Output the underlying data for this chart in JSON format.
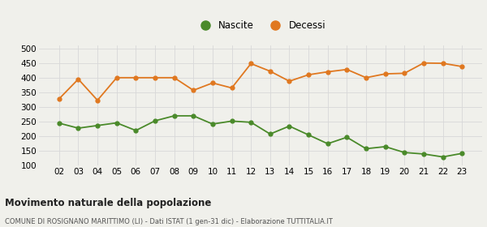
{
  "years": [
    "02",
    "03",
    "04",
    "05",
    "06",
    "07",
    "08",
    "09",
    "10",
    "11",
    "12",
    "13",
    "14",
    "15",
    "16",
    "17",
    "18",
    "19",
    "20",
    "21",
    "22",
    "23"
  ],
  "nascite": [
    245,
    228,
    237,
    246,
    220,
    253,
    270,
    270,
    242,
    252,
    248,
    208,
    235,
    205,
    175,
    197,
    158,
    165,
    145,
    140,
    130,
    142
  ],
  "decessi": [
    328,
    395,
    323,
    400,
    400,
    400,
    400,
    357,
    382,
    365,
    448,
    422,
    388,
    410,
    420,
    428,
    400,
    413,
    415,
    450,
    449,
    438
  ],
  "nascite_color": "#4a8a2a",
  "decessi_color": "#e07820",
  "title": "Movimento naturale della popolazione",
  "subtitle": "COMUNE DI ROSIGNANO MARITTIMO (LI) - Dati ISTAT (1 gen-31 dic) - Elaborazione TUTTITALIA.IT",
  "legend_nascite": "Nascite",
  "legend_decessi": "Decessi",
  "ylim": [
    100,
    510
  ],
  "yticks": [
    100,
    150,
    200,
    250,
    300,
    350,
    400,
    450,
    500
  ],
  "bg_color": "#f0f0eb",
  "grid_color": "#d8d8d8"
}
